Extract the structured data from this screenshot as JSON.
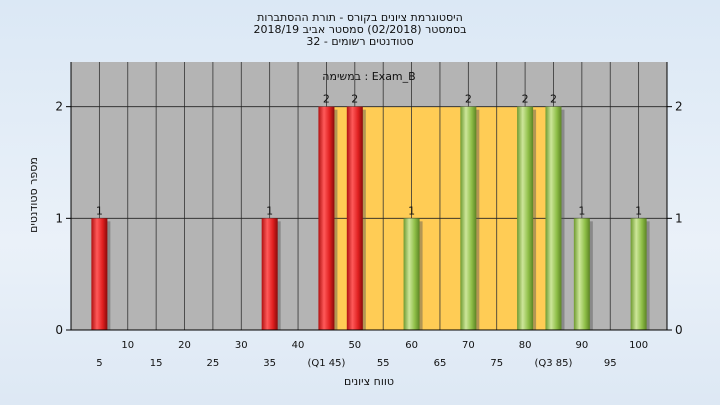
{
  "chart_data": {
    "type": "bar",
    "title_lines": [
      "היסטוגרמת ציונים בקורס - תורת ההסתברות",
      "בסמסטר  (02/2018)  סמסטר אביב 2018/19",
      "סטודנטים רשומים - 32"
    ],
    "inner_label": "במשימה : Exam_B",
    "xlabel": "טווח ציונים",
    "ylabel": "מספר סטודנטים",
    "ylim": [
      0,
      2.4
    ],
    "xlim": [
      0,
      105
    ],
    "y_ticks": [
      0,
      1,
      2
    ],
    "x_tick_labels": [
      {
        "x": 5,
        "label": "5",
        "row": 2
      },
      {
        "x": 10,
        "label": "10",
        "row": 1
      },
      {
        "x": 15,
        "label": "15",
        "row": 2
      },
      {
        "x": 20,
        "label": "20",
        "row": 1
      },
      {
        "x": 25,
        "label": "25",
        "row": 2
      },
      {
        "x": 30,
        "label": "30",
        "row": 1
      },
      {
        "x": 35,
        "label": "35",
        "row": 2
      },
      {
        "x": 40,
        "label": "40",
        "row": 1
      },
      {
        "x": 45,
        "label": "(Q1 45)",
        "row": 2
      },
      {
        "x": 50,
        "label": "50",
        "row": 1
      },
      {
        "x": 55,
        "label": "55",
        "row": 2
      },
      {
        "x": 60,
        "label": "60",
        "row": 1
      },
      {
        "x": 65,
        "label": "65",
        "row": 2
      },
      {
        "x": 70,
        "label": "70",
        "row": 1
      },
      {
        "x": 75,
        "label": "75",
        "row": 2
      },
      {
        "x": 80,
        "label": "80",
        "row": 1
      },
      {
        "x": 85,
        "label": "(Q3 85)",
        "row": 2
      },
      {
        "x": 90,
        "label": "90",
        "row": 1
      },
      {
        "x": 95,
        "label": "95",
        "row": 2
      },
      {
        "x": 100,
        "label": "100",
        "row": 1
      }
    ],
    "iqr_range": [
      45,
      85
    ],
    "bars": [
      {
        "x": 5,
        "value": 1,
        "label": "1",
        "color": "red"
      },
      {
        "x": 35,
        "value": 1,
        "label": "1",
        "color": "red"
      },
      {
        "x": 45,
        "value": 2,
        "label": "2",
        "color": "red"
      },
      {
        "x": 50,
        "value": 2,
        "label": "2",
        "color": "red"
      },
      {
        "x": 60,
        "value": 1,
        "label": "1",
        "color": "green"
      },
      {
        "x": 70,
        "value": 2,
        "label": "2",
        "color": "green"
      },
      {
        "x": 80,
        "value": 2,
        "label": "2",
        "color": "green"
      },
      {
        "x": 85,
        "value": 2,
        "label": "2",
        "color": "green"
      },
      {
        "x": 90,
        "value": 1,
        "label": "1",
        "color": "green"
      },
      {
        "x": 100,
        "value": 1,
        "label": "1",
        "color": "green"
      }
    ],
    "colors": {
      "plot_bg": "#b4b4b4",
      "iqr_fill": "#ffcc55",
      "red": "#e02020",
      "green": "#88bb44"
    }
  }
}
